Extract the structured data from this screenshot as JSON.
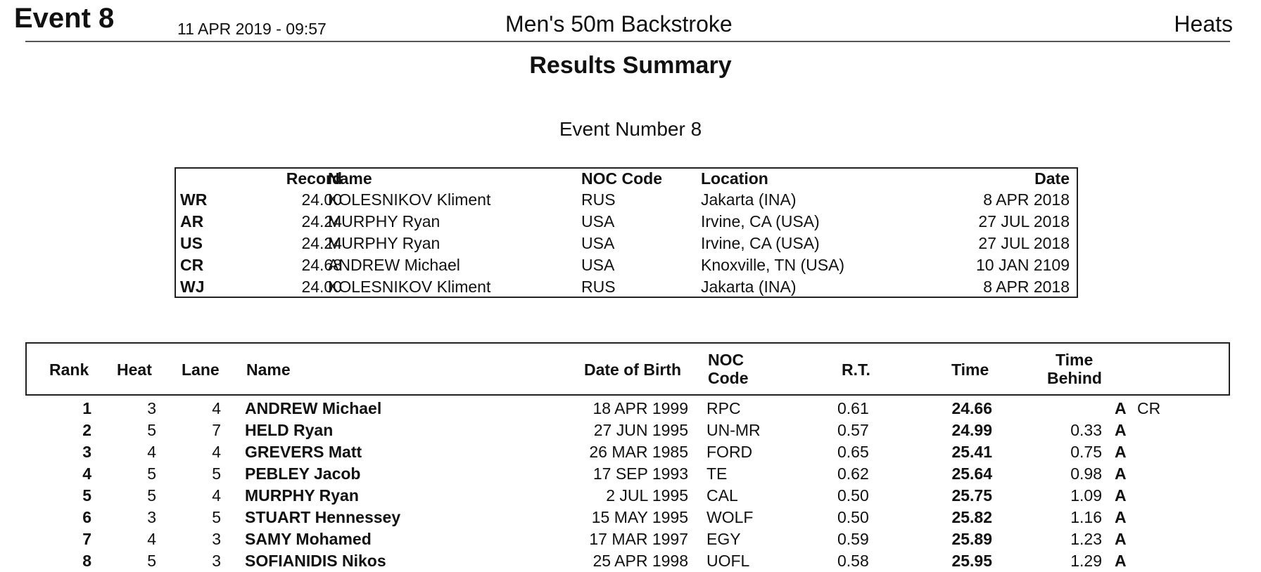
{
  "header": {
    "event": "Event 8",
    "datetime": "11 APR 2019 - 09:57",
    "title": "Men's 50m Backstroke",
    "round": "Heats"
  },
  "summary_title": "Results Summary",
  "event_number": "Event Number 8",
  "records": {
    "headers": {
      "record": "Record",
      "name": "Name",
      "noc": "NOC Code",
      "location": "Location",
      "date": "Date"
    },
    "rows": [
      {
        "abbr": "WR",
        "time": "24.00",
        "name": "KOLESNIKOV Kliment",
        "noc": "RUS",
        "location": "Jakarta (INA)",
        "date": "8 APR 2018"
      },
      {
        "abbr": "AR",
        "time": "24.24",
        "name": "MURPHY Ryan",
        "noc": "USA",
        "location": "Irvine, CA (USA)",
        "date": "27 JUL 2018"
      },
      {
        "abbr": "US",
        "time": "24.24",
        "name": "MURPHY Ryan",
        "noc": "USA",
        "location": "Irvine, CA (USA)",
        "date": "27 JUL 2018"
      },
      {
        "abbr": "CR",
        "time": "24.68",
        "name": "ANDREW Michael",
        "noc": "USA",
        "location": "Knoxville, TN (USA)",
        "date": "10 JAN 2109"
      },
      {
        "abbr": "WJ",
        "time": "24.00",
        "name": "KOLESNIKOV Kliment",
        "noc": "RUS",
        "location": "Jakarta (INA)",
        "date": "8 APR 2018"
      }
    ]
  },
  "results": {
    "headers": {
      "rank": "Rank",
      "heat": "Heat",
      "lane": "Lane",
      "name": "Name",
      "dob": "Date of Birth",
      "noc_1": "NOC",
      "noc_2": "Code",
      "rt": "R.T.",
      "time": "Time",
      "behind_1": "Time",
      "behind_2": "Behind"
    },
    "rows": [
      {
        "rank": "1",
        "heat": "3",
        "lane": "4",
        "name": "ANDREW Michael",
        "dob": "18 APR 1999",
        "noc": "RPC",
        "rt": "0.61",
        "time": "24.66",
        "behind": "",
        "q": "A",
        "rec": "CR"
      },
      {
        "rank": "2",
        "heat": "5",
        "lane": "7",
        "name": "HELD Ryan",
        "dob": "27 JUN 1995",
        "noc": "UN-MR",
        "rt": "0.57",
        "time": "24.99",
        "behind": "0.33",
        "q": "A",
        "rec": ""
      },
      {
        "rank": "3",
        "heat": "4",
        "lane": "4",
        "name": "GREVERS Matt",
        "dob": "26 MAR 1985",
        "noc": "FORD",
        "rt": "0.65",
        "time": "25.41",
        "behind": "0.75",
        "q": "A",
        "rec": ""
      },
      {
        "rank": "4",
        "heat": "5",
        "lane": "5",
        "name": "PEBLEY Jacob",
        "dob": "17 SEP 1993",
        "noc": "TE",
        "rt": "0.62",
        "time": "25.64",
        "behind": "0.98",
        "q": "A",
        "rec": ""
      },
      {
        "rank": "5",
        "heat": "5",
        "lane": "4",
        "name": "MURPHY Ryan",
        "dob": "2 JUL 1995",
        "noc": "CAL",
        "rt": "0.50",
        "time": "25.75",
        "behind": "1.09",
        "q": "A",
        "rec": ""
      },
      {
        "rank": "6",
        "heat": "3",
        "lane": "5",
        "name": "STUART Hennessey",
        "dob": "15 MAY 1995",
        "noc": "WOLF",
        "rt": "0.50",
        "time": "25.82",
        "behind": "1.16",
        "q": "A",
        "rec": ""
      },
      {
        "rank": "7",
        "heat": "4",
        "lane": "3",
        "name": "SAMY Mohamed",
        "dob": "17 MAR 1997",
        "noc": "EGY",
        "rt": "0.59",
        "time": "25.89",
        "behind": "1.23",
        "q": "A",
        "rec": ""
      },
      {
        "rank": "8",
        "heat": "5",
        "lane": "3",
        "name": "SOFIANIDIS Nikos",
        "dob": "25 APR 1998",
        "noc": "UOFL",
        "rt": "0.58",
        "time": "25.95",
        "behind": "1.29",
        "q": "A",
        "rec": ""
      }
    ]
  }
}
